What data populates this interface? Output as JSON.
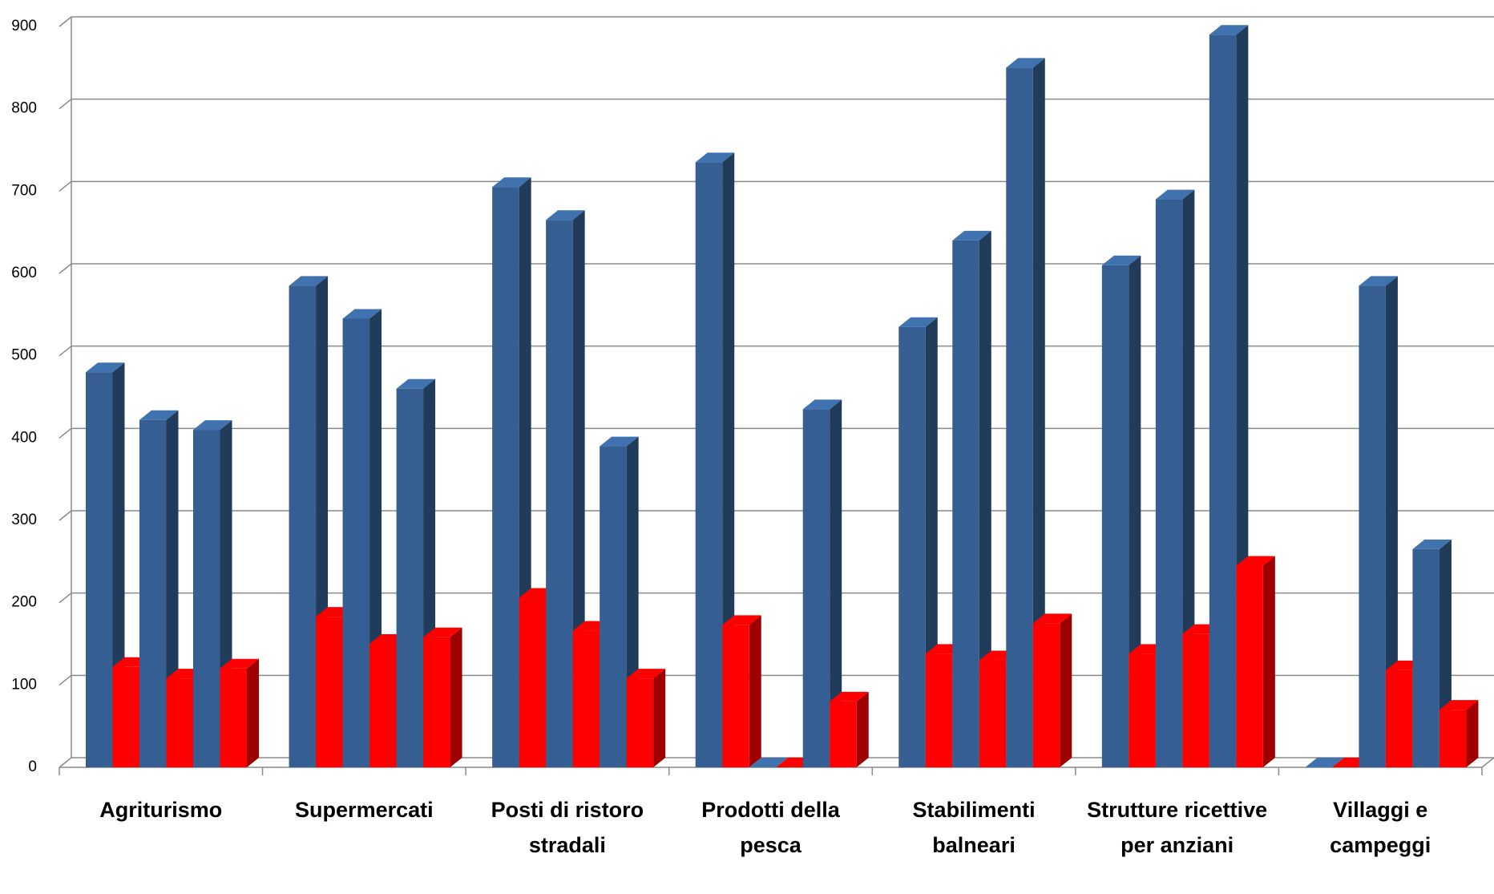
{
  "chart_data": {
    "type": "bar3d",
    "categories": [
      "Agriturismo",
      "Supermercati",
      "Posti di ristoro stradali",
      "Prodotti della pesca",
      "Stabilimenti balneari",
      "Strutture ricettive per anziani",
      "Villaggi e campeggi"
    ],
    "series": [
      {
        "color": "#355f92",
        "values": [
          480,
          585,
          705,
          735,
          535,
          610,
          0
        ]
      },
      {
        "color": "#ff0000",
        "values": [
          122,
          183,
          206,
          173,
          138,
          138,
          0
        ]
      },
      {
        "color": "#355f92",
        "values": [
          422,
          545,
          665,
          0,
          640,
          690,
          585
        ]
      },
      {
        "color": "#ff0000",
        "values": [
          108,
          150,
          166,
          0,
          130,
          162,
          118
        ]
      },
      {
        "color": "#355f92",
        "values": [
          410,
          460,
          390,
          435,
          850,
          890,
          265
        ]
      },
      {
        "color": "#ff0000",
        "values": [
          120,
          158,
          108,
          80,
          175,
          245,
          70
        ]
      }
    ],
    "ylim": [
      0,
      900
    ],
    "yticks": [
      0,
      100,
      200,
      300,
      400,
      500,
      600,
      700,
      800,
      900
    ],
    "grid": true
  }
}
